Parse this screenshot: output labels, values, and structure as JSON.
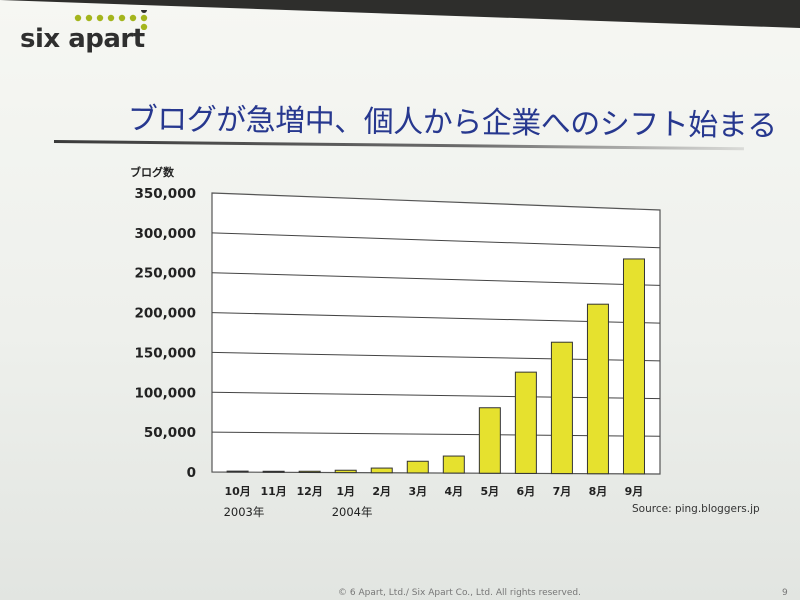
{
  "logo": {
    "text": "six apart"
  },
  "slide": {
    "title": "ブログが急増中、個人から企業へのシフト始まる",
    "footer": "© 6 Apart, Ltd./ Six Apart Co., Ltd. All rights reserved.",
    "page_number": "9"
  },
  "colors": {
    "title": "#27388f",
    "bar_fill": "#e6e12e",
    "bar_stroke": "#333333",
    "logo_dots": "#a4b51d"
  },
  "chart_data": {
    "type": "bar",
    "title": "",
    "ylabel": "ブログ数",
    "xlabel": "",
    "categories": [
      "10月",
      "11月",
      "12月",
      "1月",
      "2月",
      "3月",
      "4月",
      "5月",
      "6月",
      "7月",
      "8月",
      "9月"
    ],
    "year_labels": [
      {
        "label": "2003年",
        "at_category": 0
      },
      {
        "label": "2004年",
        "at_category": 3
      }
    ],
    "values": [
      800,
      900,
      1500,
      3000,
      6000,
      15000,
      22000,
      85000,
      132000,
      172000,
      223000,
      284000
    ],
    "ylim": [
      0,
      350000
    ],
    "yticks": [
      0,
      50000,
      100000,
      150000,
      200000,
      250000,
      300000,
      350000
    ],
    "ytick_labels": [
      "0",
      "50,000",
      "100,000",
      "150,000",
      "200,000",
      "250,000",
      "300,000",
      "350,000"
    ],
    "grid": true,
    "legend": "none",
    "source": "Source: ping.bloggers.jp"
  }
}
